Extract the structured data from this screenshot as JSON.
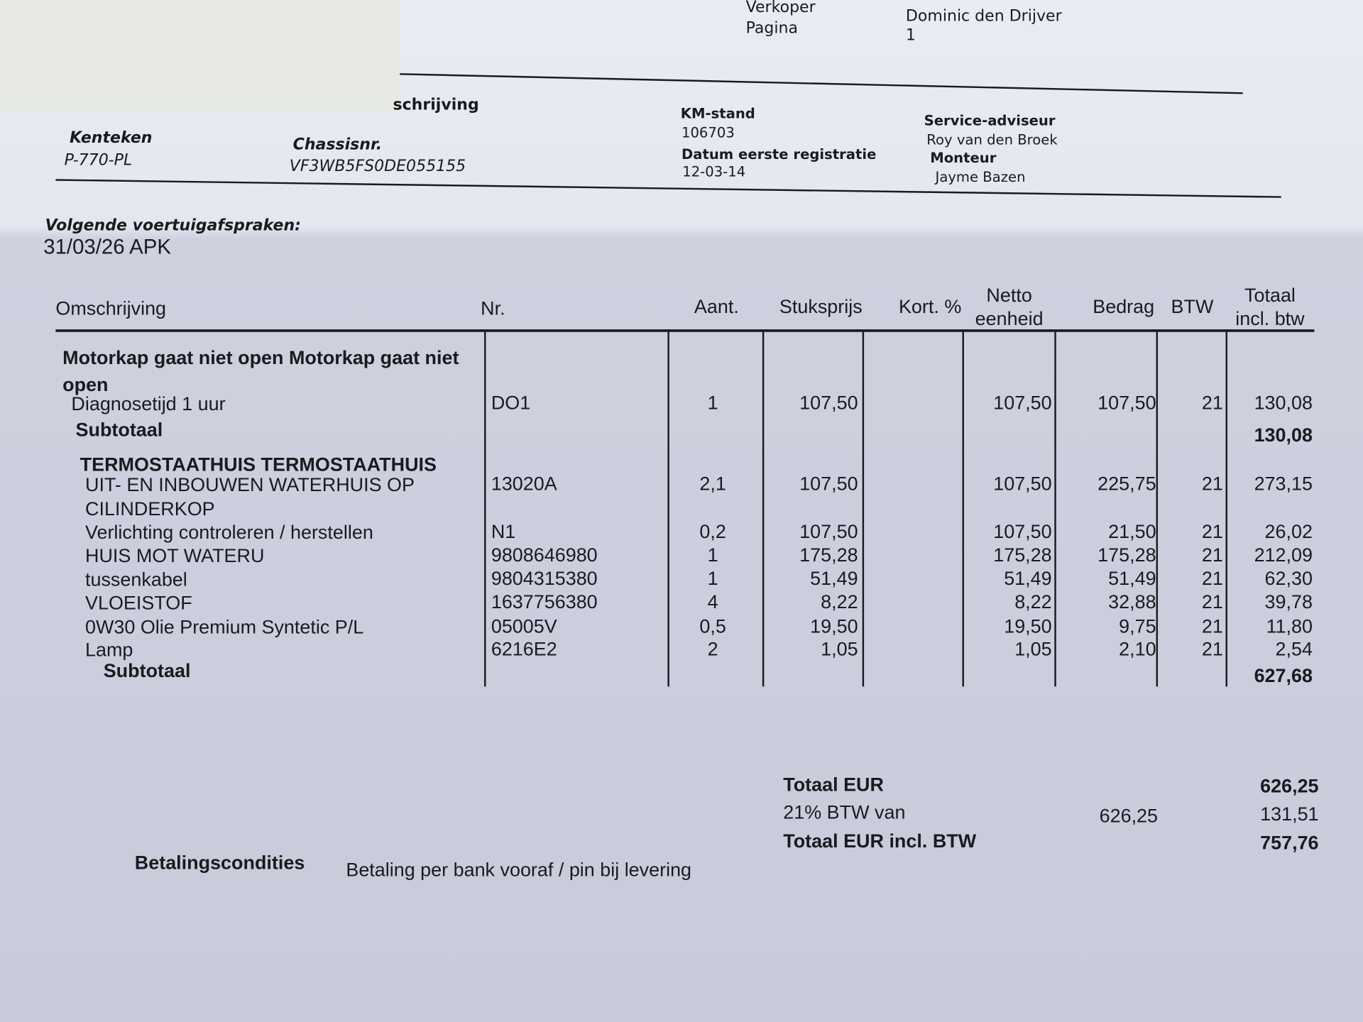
{
  "header": {
    "verkoper_label": "Verkoper",
    "verkoper": "Dominic den Drijver",
    "pagina_label": "Pagina",
    "pagina": "1"
  },
  "vehicle": {
    "omschrijving_label": "schrijving",
    "kenteken_label": "Kenteken",
    "kenteken": "P-770-PL",
    "chassis_label": "Chassisnr.",
    "chassis": "VF3WB5FS0DE055155",
    "km_label": "KM-stand",
    "km": "106703",
    "datum_label": "Datum eerste registratie",
    "datum": "12-03-14",
    "adviseur_label": "Service-adviseur",
    "adviseur": "Roy  van den Broek",
    "monteur_label": "Monteur",
    "monteur": "Jayme Bazen"
  },
  "appointments": {
    "title": "Volgende voertuigafspraken:",
    "items": [
      "31/03/26 APK"
    ]
  },
  "table": {
    "columns": [
      "Omschrijving",
      "Nr.",
      "Aant.",
      "Stuksprijs",
      "Kort. %",
      "Netto\neenheid",
      "Bedrag",
      "BTW",
      "Totaal\nincl. btw"
    ],
    "groups": [
      {
        "title": "Motorkap gaat niet open Motorkap gaat niet open",
        "rows": [
          {
            "desc": "Diagnosetijd 1 uur",
            "nr": "DO1",
            "aant": "1",
            "stuksprijs": "107,50",
            "netto": "107,50",
            "bedrag": "107,50",
            "btw": "21",
            "totaal": "130,08"
          }
        ],
        "subtotal_label": "Subtotaal",
        "subtotal": "130,08"
      },
      {
        "title": "TERMOSTAATHUIS TERMOSTAATHUIS",
        "rows": [
          {
            "desc": "UIT- EN INBOUWEN WATERHUIS OP CILINDERKOP",
            "nr": "13020A",
            "aant": "2,1",
            "stuksprijs": "107,50",
            "netto": "107,50",
            "bedrag": "225,75",
            "btw": "21",
            "totaal": "273,15"
          },
          {
            "desc": "Verlichting controleren / herstellen",
            "nr": "N1",
            "aant": "0,2",
            "stuksprijs": "107,50",
            "netto": "107,50",
            "bedrag": "21,50",
            "btw": "21",
            "totaal": "26,02"
          },
          {
            "desc": "HUIS MOT WATERU",
            "nr": "9808646980",
            "aant": "1",
            "stuksprijs": "175,28",
            "netto": "175,28",
            "bedrag": "175,28",
            "btw": "21",
            "totaal": "212,09"
          },
          {
            "desc": "tussenkabel",
            "nr": "9804315380",
            "aant": "1",
            "stuksprijs": "51,49",
            "netto": "51,49",
            "bedrag": "51,49",
            "btw": "21",
            "totaal": "62,30"
          },
          {
            "desc": "VLOEISTOF",
            "nr": "1637756380",
            "aant": "4",
            "stuksprijs": "8,22",
            "netto": "8,22",
            "bedrag": "32,88",
            "btw": "21",
            "totaal": "39,78"
          },
          {
            "desc": "0W30 Olie Premium Syntetic  P/L",
            "nr": "05005V",
            "aant": "0,5",
            "stuksprijs": "19,50",
            "netto": "19,50",
            "bedrag": "9,75",
            "btw": "21",
            "totaal": "11,80"
          },
          {
            "desc": "Lamp",
            "nr": "6216E2",
            "aant": "2",
            "stuksprijs": "1,05",
            "netto": "1,05",
            "bedrag": "2,10",
            "btw": "21",
            "totaal": "2,54"
          }
        ],
        "subtotal_label": "Subtotaal",
        "subtotal": "627,68"
      }
    ]
  },
  "totals": [
    {
      "label": "Totaal EUR",
      "value": "626,25"
    },
    {
      "label": "21% BTW van",
      "base": "626,25",
      "value": "131,51"
    },
    {
      "label": "Totaal EUR incl. BTW",
      "value": "757,76"
    }
  ],
  "payment": {
    "label": "Betalingscondities",
    "text": "Betaling per bank vooraf / pin bij levering"
  }
}
